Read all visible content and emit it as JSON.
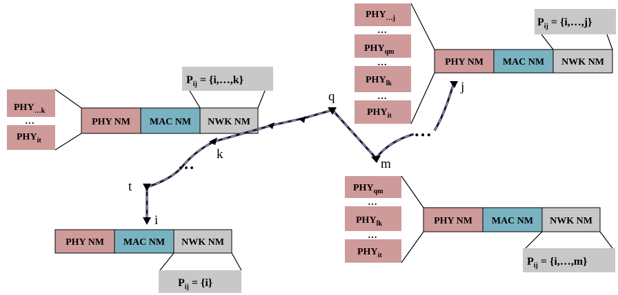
{
  "colors": {
    "phy": "#cf9a9a",
    "mac": "#79b2c1",
    "nwk": "#c8c8c8",
    "path": "#1a1a3a",
    "path_dash": "#a9b4c8"
  },
  "nm_labels": {
    "phy": "PHY NM",
    "mac": "MAC NM",
    "nwk": "NWK NM"
  },
  "phy_entries": {
    "prefix": "PHY",
    "dots": "…",
    "it": "it",
    "lk": "lk",
    "qm": "qm",
    "to_k": "…k",
    "to_j": "…j"
  },
  "pij": {
    "prefix": "P",
    "sub": "ij",
    "k": " = {i,…,k}",
    "j": " = {i,…,j}",
    "i": " = {i}",
    "m": " = {i,…,m}"
  },
  "nodes": {
    "t": "t",
    "i": "i",
    "k": "k",
    "q": "q",
    "m": "m",
    "j": "j"
  },
  "ellipsis": "…"
}
